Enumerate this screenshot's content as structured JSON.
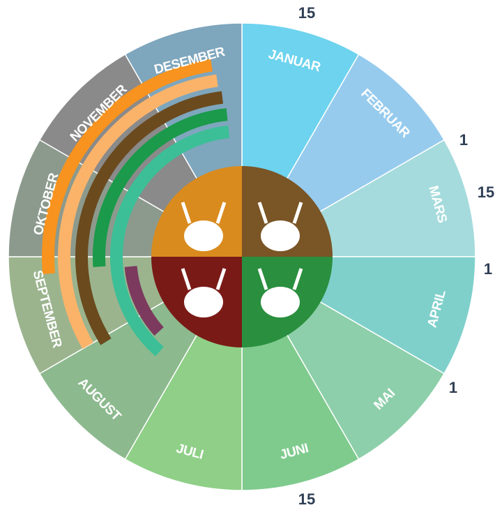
{
  "months": [
    "JANUAR",
    "FEBRUAR",
    "MARS",
    "APRIL",
    "MAI",
    "JUNI",
    "JULI",
    "AUGUST",
    "SEPTEMBER",
    "OKTOBER",
    "NOVEMBER",
    "DESEMBER"
  ],
  "edge_labels": [
    "15",
    "1",
    "15",
    "1",
    "1",
    "15"
  ]
}
